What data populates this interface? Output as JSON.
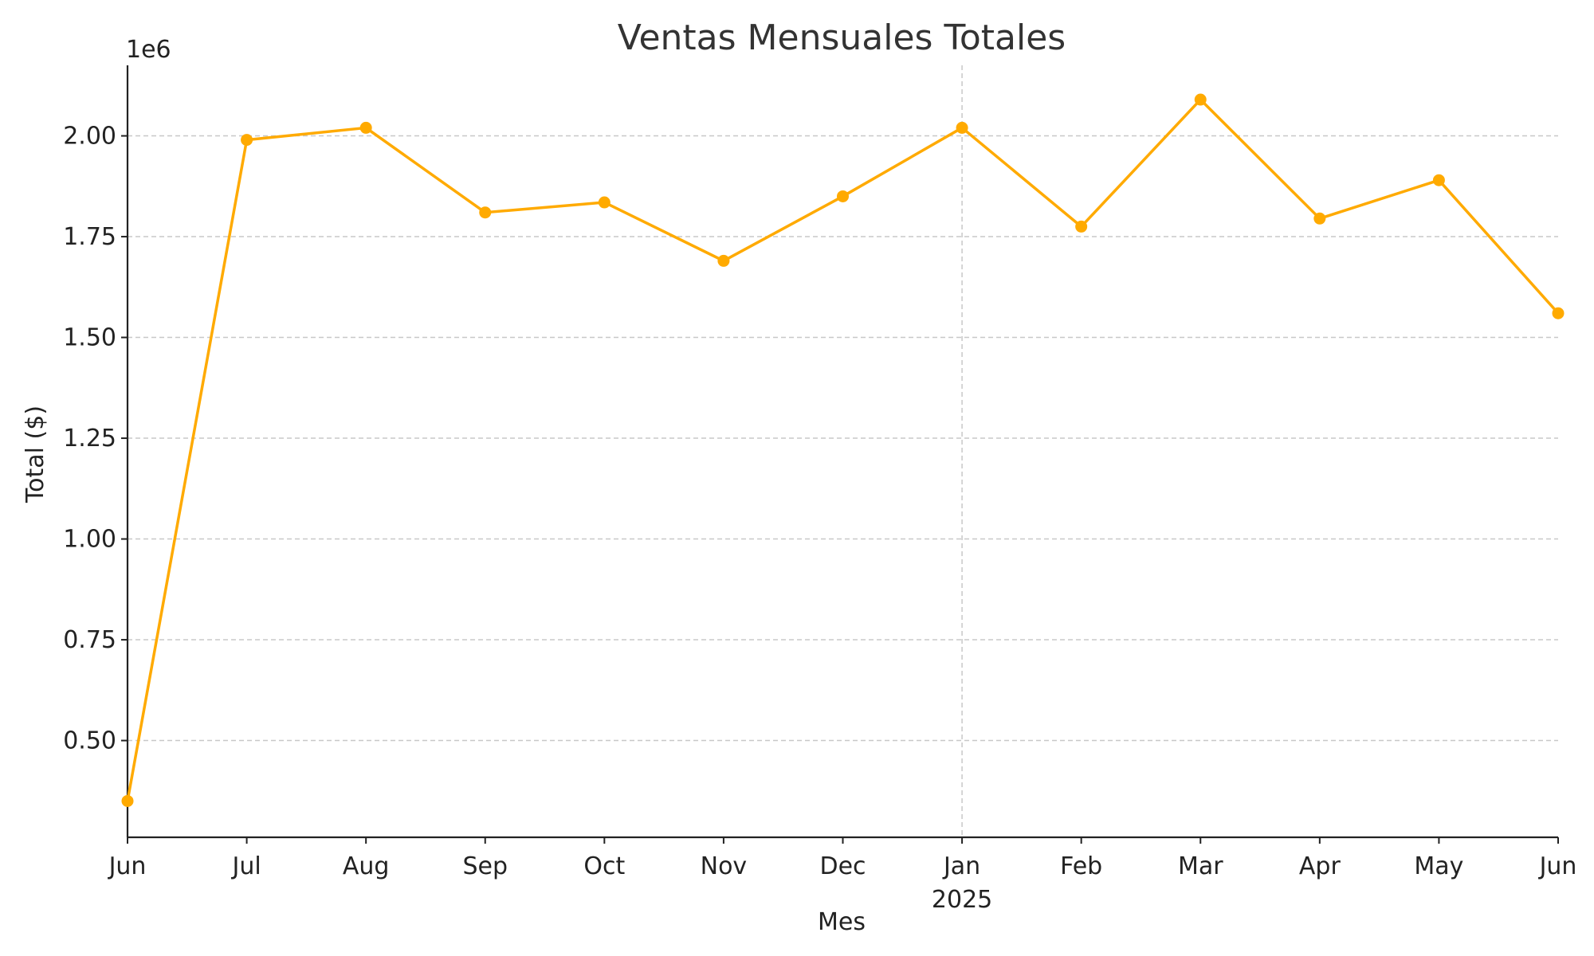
{
  "chart_data": {
    "type": "line",
    "title": "Ventas Mensuales Totales",
    "xlabel": "Mes",
    "ylabel": "Total ($)",
    "y_offset_label": "1e6",
    "x": [
      "2024-06",
      "2024-07",
      "2024-08",
      "2024-09",
      "2024-10",
      "2024-11",
      "2024-12",
      "2025-01",
      "2025-02",
      "2025-03",
      "2025-04",
      "2025-05",
      "2025-06"
    ],
    "x_tick_labels": [
      "Jun",
      "Jul",
      "Aug",
      "Sep",
      "Oct",
      "Nov",
      "Dec",
      "Jan",
      "Feb",
      "Mar",
      "Apr",
      "May",
      "Jun"
    ],
    "x_year_label": "2025",
    "series": [
      {
        "values": [
          0.35,
          1.99,
          2.02,
          1.81,
          1.835,
          1.69,
          1.85,
          2.02,
          1.775,
          2.09,
          1.795,
          1.89,
          1.56
        ]
      }
    ],
    "y_ticks": [
      "0.50",
      "0.75",
      "1.00",
      "1.25",
      "1.50",
      "1.75",
      "2.00"
    ],
    "y_tick_values": [
      0.5,
      0.75,
      1.0,
      1.25,
      1.5,
      1.75,
      2.0
    ],
    "ylim": [
      0.26,
      2.175
    ],
    "grid": "horizontal dashed",
    "color": "#FFAA00"
  }
}
